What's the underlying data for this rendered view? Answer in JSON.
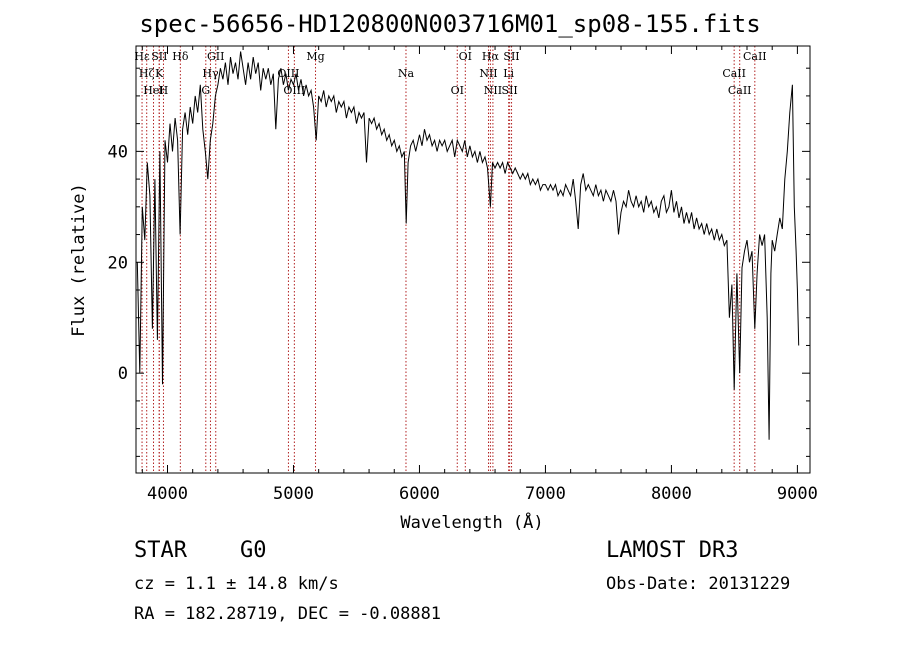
{
  "title": "spec-56656-HD120800N003716M01_sp08-155.fits",
  "info": {
    "class": "STAR",
    "subclass": "G0",
    "survey": "LAMOST DR3",
    "cz": "cz = 1.1 ± 14.8 km/s",
    "obs_date": "Obs-Date: 20131229",
    "radec": "RA = 182.28719, DEC =  -0.08881"
  },
  "chart_data": {
    "type": "line",
    "xlabel": "Wavelength (Å)",
    "ylabel": "Flux (relative)",
    "xlim": [
      3750,
      9100
    ],
    "ylim": [
      -18,
      59
    ],
    "x_ticks": [
      4000,
      5000,
      6000,
      7000,
      8000,
      9000
    ],
    "y_ticks": [
      0,
      20,
      40
    ],
    "grid": false,
    "line_color": "#000000",
    "marker_color": "#b22222",
    "series": [
      {
        "values": [
          [
            3760,
            20
          ],
          [
            3780,
            0
          ],
          [
            3800,
            30
          ],
          [
            3820,
            24
          ],
          [
            3840,
            38
          ],
          [
            3860,
            32
          ],
          [
            3880,
            8
          ],
          [
            3900,
            35
          ],
          [
            3920,
            6
          ],
          [
            3940,
            40
          ],
          [
            3960,
            -2
          ],
          [
            3980,
            42
          ],
          [
            4000,
            38
          ],
          [
            4020,
            45
          ],
          [
            4040,
            40
          ],
          [
            4060,
            46
          ],
          [
            4080,
            42
          ],
          [
            4100,
            25
          ],
          [
            4120,
            44
          ],
          [
            4140,
            47
          ],
          [
            4160,
            43
          ],
          [
            4180,
            48
          ],
          [
            4200,
            45
          ],
          [
            4220,
            50
          ],
          [
            4240,
            47
          ],
          [
            4260,
            52
          ],
          [
            4280,
            44
          ],
          [
            4300,
            40
          ],
          [
            4320,
            35
          ],
          [
            4340,
            42
          ],
          [
            4360,
            45
          ],
          [
            4380,
            50
          ],
          [
            4400,
            52
          ],
          [
            4420,
            55
          ],
          [
            4440,
            53
          ],
          [
            4460,
            56
          ],
          [
            4480,
            52
          ],
          [
            4500,
            57
          ],
          [
            4520,
            54
          ],
          [
            4540,
            56
          ],
          [
            4560,
            53
          ],
          [
            4580,
            58
          ],
          [
            4600,
            55
          ],
          [
            4620,
            52
          ],
          [
            4640,
            56
          ],
          [
            4660,
            53
          ],
          [
            4680,
            57
          ],
          [
            4700,
            54
          ],
          [
            4720,
            56
          ],
          [
            4740,
            51
          ],
          [
            4760,
            55
          ],
          [
            4780,
            53
          ],
          [
            4800,
            55
          ],
          [
            4820,
            52
          ],
          [
            4840,
            54
          ],
          [
            4860,
            44
          ],
          [
            4880,
            53
          ],
          [
            4900,
            55
          ],
          [
            4920,
            52
          ],
          [
            4940,
            54
          ],
          [
            4960,
            51
          ],
          [
            4980,
            53
          ],
          [
            5000,
            52
          ],
          [
            5020,
            54
          ],
          [
            5040,
            51
          ],
          [
            5060,
            53
          ],
          [
            5080,
            50
          ],
          [
            5100,
            52
          ],
          [
            5120,
            50
          ],
          [
            5140,
            51
          ],
          [
            5160,
            48
          ],
          [
            5180,
            42
          ],
          [
            5200,
            50
          ],
          [
            5220,
            49
          ],
          [
            5240,
            51
          ],
          [
            5260,
            48
          ],
          [
            5280,
            50
          ],
          [
            5300,
            49
          ],
          [
            5320,
            50
          ],
          [
            5340,
            47
          ],
          [
            5360,
            49
          ],
          [
            5380,
            48
          ],
          [
            5400,
            49
          ],
          [
            5420,
            46
          ],
          [
            5440,
            48
          ],
          [
            5460,
            47
          ],
          [
            5480,
            48
          ],
          [
            5500,
            45
          ],
          [
            5520,
            47
          ],
          [
            5540,
            46
          ],
          [
            5560,
            47
          ],
          [
            5580,
            38
          ],
          [
            5600,
            46
          ],
          [
            5620,
            45
          ],
          [
            5640,
            46
          ],
          [
            5660,
            44
          ],
          [
            5680,
            45
          ],
          [
            5700,
            43
          ],
          [
            5720,
            44
          ],
          [
            5740,
            42
          ],
          [
            5760,
            43
          ],
          [
            5780,
            41
          ],
          [
            5800,
            42
          ],
          [
            5820,
            40
          ],
          [
            5840,
            41
          ],
          [
            5860,
            39
          ],
          [
            5880,
            40
          ],
          [
            5895,
            27
          ],
          [
            5910,
            38
          ],
          [
            5930,
            41
          ],
          [
            5950,
            42
          ],
          [
            5970,
            40
          ],
          [
            6000,
            43
          ],
          [
            6020,
            41
          ],
          [
            6040,
            44
          ],
          [
            6060,
            42
          ],
          [
            6080,
            43
          ],
          [
            6100,
            41
          ],
          [
            6120,
            42
          ],
          [
            6140,
            40
          ],
          [
            6160,
            42
          ],
          [
            6180,
            41
          ],
          [
            6200,
            42
          ],
          [
            6220,
            40
          ],
          [
            6240,
            41
          ],
          [
            6260,
            42
          ],
          [
            6280,
            39
          ],
          [
            6300,
            42
          ],
          [
            6320,
            41
          ],
          [
            6340,
            40
          ],
          [
            6360,
            42
          ],
          [
            6380,
            39
          ],
          [
            6400,
            41
          ],
          [
            6420,
            39
          ],
          [
            6440,
            40
          ],
          [
            6460,
            38
          ],
          [
            6480,
            40
          ],
          [
            6500,
            38
          ],
          [
            6520,
            39
          ],
          [
            6540,
            37
          ],
          [
            6563,
            30
          ],
          [
            6580,
            38
          ],
          [
            6600,
            37
          ],
          [
            6620,
            38
          ],
          [
            6640,
            37
          ],
          [
            6660,
            38
          ],
          [
            6680,
            36
          ],
          [
            6700,
            38
          ],
          [
            6720,
            37
          ],
          [
            6740,
            36
          ],
          [
            6760,
            37
          ],
          [
            6780,
            36
          ],
          [
            6800,
            35
          ],
          [
            6820,
            36
          ],
          [
            6840,
            35
          ],
          [
            6860,
            36
          ],
          [
            6880,
            34
          ],
          [
            6900,
            35
          ],
          [
            6920,
            34
          ],
          [
            6940,
            35
          ],
          [
            6960,
            33
          ],
          [
            6980,
            34
          ],
          [
            7000,
            34
          ],
          [
            7020,
            33
          ],
          [
            7040,
            34
          ],
          [
            7060,
            33
          ],
          [
            7080,
            34
          ],
          [
            7100,
            32
          ],
          [
            7120,
            33
          ],
          [
            7140,
            32
          ],
          [
            7160,
            34
          ],
          [
            7180,
            33
          ],
          [
            7200,
            32
          ],
          [
            7220,
            35
          ],
          [
            7240,
            31
          ],
          [
            7260,
            26
          ],
          [
            7280,
            34
          ],
          [
            7300,
            36
          ],
          [
            7320,
            33
          ],
          [
            7340,
            34
          ],
          [
            7360,
            33
          ],
          [
            7380,
            32
          ],
          [
            7400,
            34
          ],
          [
            7420,
            32
          ],
          [
            7440,
            33
          ],
          [
            7460,
            31
          ],
          [
            7480,
            33
          ],
          [
            7500,
            32
          ],
          [
            7520,
            31
          ],
          [
            7540,
            33
          ],
          [
            7560,
            31
          ],
          [
            7580,
            25
          ],
          [
            7600,
            29
          ],
          [
            7620,
            31
          ],
          [
            7640,
            30
          ],
          [
            7660,
            33
          ],
          [
            7680,
            31
          ],
          [
            7700,
            30
          ],
          [
            7720,
            32
          ],
          [
            7740,
            30
          ],
          [
            7760,
            31
          ],
          [
            7780,
            29
          ],
          [
            7800,
            32
          ],
          [
            7820,
            30
          ],
          [
            7840,
            31
          ],
          [
            7860,
            29
          ],
          [
            7880,
            30
          ],
          [
            7900,
            28
          ],
          [
            7920,
            31
          ],
          [
            7940,
            32
          ],
          [
            7960,
            29
          ],
          [
            7980,
            30
          ],
          [
            8000,
            33
          ],
          [
            8020,
            29
          ],
          [
            8040,
            31
          ],
          [
            8060,
            28
          ],
          [
            8080,
            30
          ],
          [
            8100,
            27
          ],
          [
            8120,
            29
          ],
          [
            8140,
            27
          ],
          [
            8160,
            29
          ],
          [
            8180,
            26
          ],
          [
            8200,
            28
          ],
          [
            8220,
            26
          ],
          [
            8240,
            27
          ],
          [
            8260,
            25
          ],
          [
            8280,
            27
          ],
          [
            8300,
            25
          ],
          [
            8320,
            26
          ],
          [
            8340,
            24
          ],
          [
            8360,
            26
          ],
          [
            8380,
            24
          ],
          [
            8400,
            25
          ],
          [
            8420,
            23
          ],
          [
            8440,
            24
          ],
          [
            8460,
            10
          ],
          [
            8480,
            16
          ],
          [
            8498,
            -3
          ],
          [
            8520,
            18
          ],
          [
            8542,
            0
          ],
          [
            8560,
            19
          ],
          [
            8580,
            22
          ],
          [
            8600,
            24
          ],
          [
            8620,
            20
          ],
          [
            8640,
            22
          ],
          [
            8662,
            8
          ],
          [
            8680,
            18
          ],
          [
            8700,
            25
          ],
          [
            8720,
            23
          ],
          [
            8740,
            25
          ],
          [
            8760,
            10
          ],
          [
            8775,
            -12
          ],
          [
            8790,
            18
          ],
          [
            8800,
            24
          ],
          [
            8820,
            22
          ],
          [
            8840,
            25
          ],
          [
            8860,
            28
          ],
          [
            8880,
            26
          ],
          [
            8900,
            35
          ],
          [
            8920,
            40
          ],
          [
            8940,
            47
          ],
          [
            8960,
            52
          ],
          [
            8975,
            30
          ],
          [
            8990,
            22
          ],
          [
            9000,
            15
          ],
          [
            9010,
            5
          ]
        ]
      }
    ],
    "markers": [
      {
        "label": "Hε",
        "wavelength": 3798
      },
      {
        "label": "Hζ",
        "wavelength": 3835
      },
      {
        "label": "HeI",
        "wavelength": 3889
      },
      {
        "label": "SII",
        "wavelength": 3935
      },
      {
        "label": "K",
        "wavelength": 3934
      },
      {
        "label": "H",
        "wavelength": 3968
      },
      {
        "label": "Hδ",
        "wavelength": 4102
      },
      {
        "label": "Hγ",
        "wavelength": 4341
      },
      {
        "label": "G",
        "wavelength": 4304
      },
      {
        "label": "GII",
        "wavelength": 4383
      },
      {
        "label": "OIII",
        "wavelength": 4960
      },
      {
        "label": "OIII",
        "wavelength": 5007
      },
      {
        "label": "Mg",
        "wavelength": 5175
      },
      {
        "label": "Na",
        "wavelength": 5893
      },
      {
        "label": "OI",
        "wavelength": 6300
      },
      {
        "label": "OI",
        "wavelength": 6364
      },
      {
        "label": "NII",
        "wavelength": 6548
      },
      {
        "label": "NII",
        "wavelength": 6583
      },
      {
        "label": "Hα",
        "wavelength": 6563
      },
      {
        "label": "Li",
        "wavelength": 6708
      },
      {
        "label": "SII",
        "wavelength": 6716
      },
      {
        "label": "SII",
        "wavelength": 6731
      },
      {
        "label": "CaII",
        "wavelength": 8498
      },
      {
        "label": "CaII",
        "wavelength": 8542
      },
      {
        "label": "CaII",
        "wavelength": 8662
      }
    ]
  }
}
